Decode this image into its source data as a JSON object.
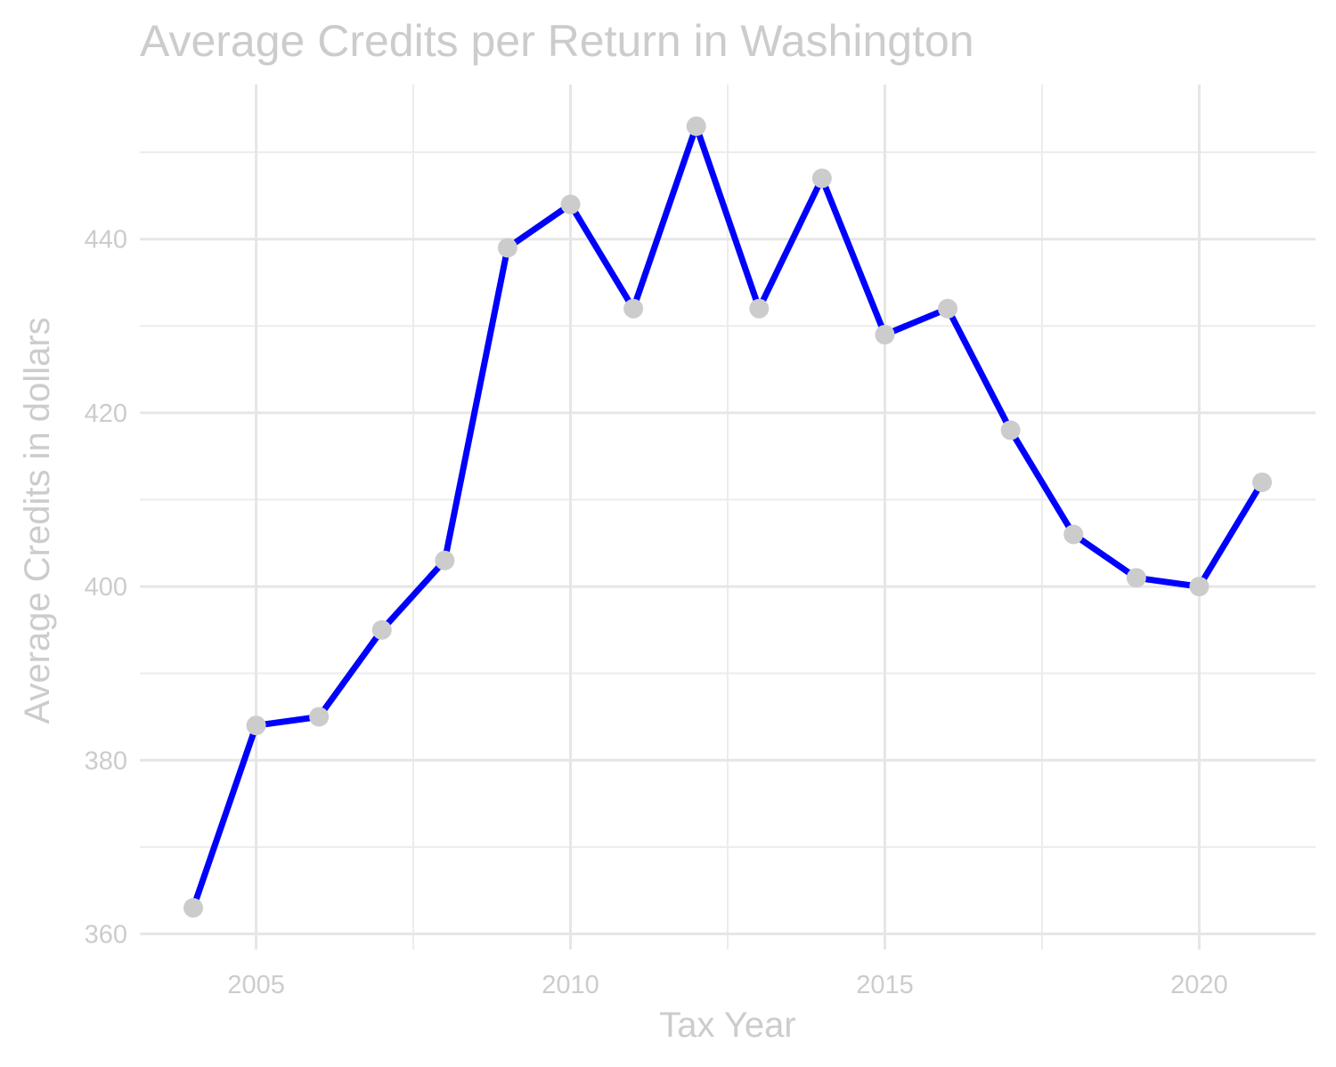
{
  "chart_data": {
    "type": "line",
    "title": "Average Credits per Return in Washington",
    "xlabel": "Tax Year",
    "ylabel": "Average Credits in dollars",
    "x": [
      2004,
      2005,
      2006,
      2007,
      2008,
      2009,
      2010,
      2011,
      2012,
      2013,
      2014,
      2015,
      2016,
      2017,
      2018,
      2019,
      2020,
      2021
    ],
    "series": [
      {
        "values": [
          363,
          384,
          385,
          395,
          403,
          439,
          444,
          432,
          453,
          432,
          447,
          429,
          432,
          418,
          406,
          401,
          400,
          412
        ]
      }
    ],
    "xlim": [
      2003.15,
      2021.85
    ],
    "ylim": [
      358.2,
      457.8
    ],
    "x_ticks": [
      2005,
      2010,
      2015,
      2020
    ],
    "x_tick_labels": [
      "2005",
      "2010",
      "2015",
      "2020"
    ],
    "y_ticks": [
      360,
      380,
      400,
      420,
      440
    ],
    "y_tick_labels": [
      "360",
      "380",
      "400",
      "420",
      "440"
    ],
    "grid": true,
    "legend": "none",
    "colors": {
      "line": "#0000ff",
      "points": "#cccccc",
      "text": "#cccccc",
      "grid": "#e6e6e6"
    }
  }
}
